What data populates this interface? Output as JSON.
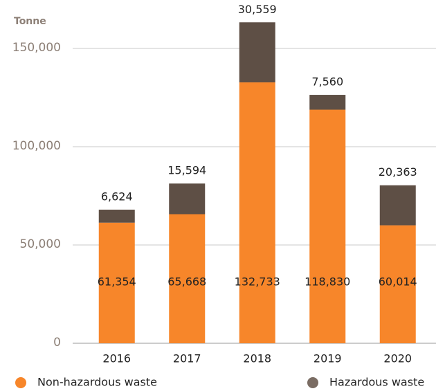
{
  "chart_data": {
    "type": "stacked-bar",
    "ylabel": "Tonne",
    "categories": [
      "2016",
      "2017",
      "2018",
      "2019",
      "2020"
    ],
    "series": [
      {
        "name": "Non-hazardous waste",
        "color": "#f7862a",
        "values": [
          61354,
          65668,
          132733,
          118830,
          60014
        ],
        "value_labels": [
          "61,354",
          "65,668",
          "132,733",
          "118,830",
          "60,014"
        ]
      },
      {
        "name": "Hazardous waste",
        "color": "#5e4f45",
        "values": [
          6624,
          15594,
          30559,
          7560,
          20363
        ],
        "value_labels": [
          "6,624",
          "15,594",
          "30,559",
          "7,560",
          "20,363"
        ]
      }
    ],
    "ylim": [
      0,
      170000
    ],
    "yticks": [
      0,
      {
        "value": 50000,
        "label": "50,000"
      },
      {
        "value": 100000,
        "label": "100,000"
      },
      {
        "value": 150000,
        "label": "150,000"
      }
    ],
    "grid": true
  }
}
